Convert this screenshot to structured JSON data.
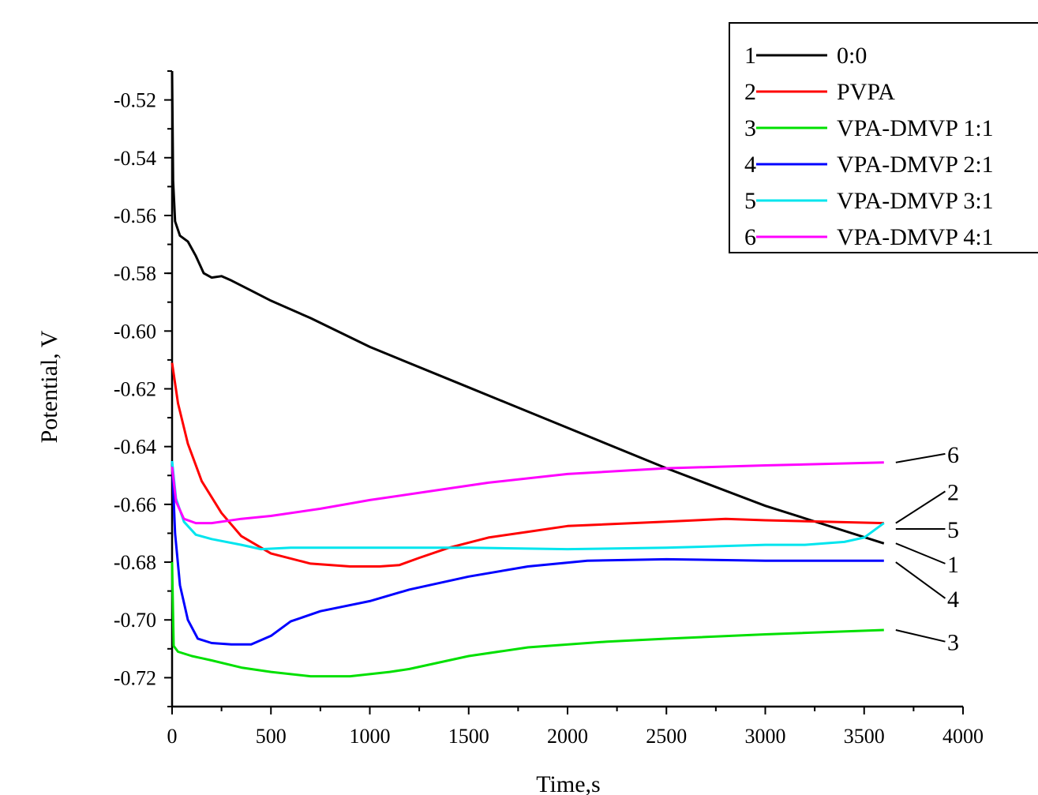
{
  "chart_data": {
    "type": "line",
    "title": "",
    "xlabel": "Time,s",
    "ylabel": "Potential, V",
    "xlim": [
      0,
      4000
    ],
    "ylim": [
      -0.73,
      -0.51
    ],
    "xticks": [
      0,
      500,
      1000,
      1500,
      2000,
      2500,
      3000,
      3500,
      4000
    ],
    "xtick_labels": [
      "0",
      "500",
      "1000",
      "1500",
      "2000",
      "2500",
      "3000",
      "3500",
      "4000"
    ],
    "yticks": [
      -0.72,
      -0.7,
      -0.68,
      -0.66,
      -0.64,
      -0.62,
      -0.6,
      -0.58,
      -0.56,
      -0.54,
      -0.52
    ],
    "ytick_labels": [
      "-0.72",
      "-0.70",
      "-0.68",
      "-0.66",
      "-0.64",
      "-0.62",
      "-0.60",
      "-0.58",
      "-0.56",
      "-0.54",
      "-0.52"
    ],
    "grid": false,
    "legend_position": "top-right",
    "series": [
      {
        "id": "1",
        "name": "0:0",
        "color": "#000000",
        "points": [
          [
            0,
            -0.51
          ],
          [
            5,
            -0.548
          ],
          [
            15,
            -0.562
          ],
          [
            40,
            -0.567
          ],
          [
            80,
            -0.569
          ],
          [
            120,
            -0.574
          ],
          [
            160,
            -0.58
          ],
          [
            200,
            -0.5815
          ],
          [
            250,
            -0.581
          ],
          [
            300,
            -0.5825
          ],
          [
            400,
            -0.586
          ],
          [
            500,
            -0.5895
          ],
          [
            700,
            -0.5955
          ],
          [
            1000,
            -0.6055
          ],
          [
            1500,
            -0.6195
          ],
          [
            2000,
            -0.6335
          ],
          [
            2500,
            -0.6475
          ],
          [
            3000,
            -0.6605
          ],
          [
            3300,
            -0.667
          ],
          [
            3600,
            -0.6735
          ]
        ]
      },
      {
        "id": "2",
        "name": "PVPA",
        "color": "#ff0000",
        "points": [
          [
            0,
            -0.611
          ],
          [
            30,
            -0.625
          ],
          [
            80,
            -0.639
          ],
          [
            150,
            -0.652
          ],
          [
            250,
            -0.663
          ],
          [
            350,
            -0.671
          ],
          [
            500,
            -0.677
          ],
          [
            700,
            -0.6805
          ],
          [
            900,
            -0.6815
          ],
          [
            1050,
            -0.6815
          ],
          [
            1150,
            -0.681
          ],
          [
            1250,
            -0.6785
          ],
          [
            1400,
            -0.675
          ],
          [
            1600,
            -0.6715
          ],
          [
            1800,
            -0.6695
          ],
          [
            2000,
            -0.6675
          ],
          [
            2500,
            -0.666
          ],
          [
            2800,
            -0.665
          ],
          [
            3000,
            -0.6655
          ],
          [
            3600,
            -0.6665
          ]
        ]
      },
      {
        "id": "3",
        "name": "VPA-DMVP 1:1",
        "color": "#00e000",
        "points": [
          [
            0,
            -0.68
          ],
          [
            8,
            -0.709
          ],
          [
            30,
            -0.711
          ],
          [
            100,
            -0.7125
          ],
          [
            200,
            -0.714
          ],
          [
            350,
            -0.7165
          ],
          [
            500,
            -0.718
          ],
          [
            700,
            -0.7195
          ],
          [
            900,
            -0.7195
          ],
          [
            1100,
            -0.718
          ],
          [
            1200,
            -0.717
          ],
          [
            1500,
            -0.7125
          ],
          [
            1800,
            -0.7095
          ],
          [
            2200,
            -0.7075
          ],
          [
            2500,
            -0.7065
          ],
          [
            3000,
            -0.705
          ],
          [
            3600,
            -0.7035
          ]
        ]
      },
      {
        "id": "4",
        "name": "VPA-DMVP 2:1",
        "color": "#0000ff",
        "points": [
          [
            0,
            -0.645
          ],
          [
            15,
            -0.67
          ],
          [
            40,
            -0.688
          ],
          [
            80,
            -0.7
          ],
          [
            130,
            -0.7065
          ],
          [
            200,
            -0.708
          ],
          [
            300,
            -0.7085
          ],
          [
            400,
            -0.7085
          ],
          [
            500,
            -0.7055
          ],
          [
            600,
            -0.7005
          ],
          [
            750,
            -0.697
          ],
          [
            1000,
            -0.6935
          ],
          [
            1200,
            -0.6895
          ],
          [
            1500,
            -0.685
          ],
          [
            1800,
            -0.6815
          ],
          [
            2100,
            -0.6795
          ],
          [
            2500,
            -0.679
          ],
          [
            3000,
            -0.6795
          ],
          [
            3600,
            -0.6795
          ]
        ]
      },
      {
        "id": "5",
        "name": "VPA-DMVP 3:1",
        "color": "#00e5ee",
        "points": [
          [
            0,
            -0.645
          ],
          [
            20,
            -0.658
          ],
          [
            60,
            -0.666
          ],
          [
            120,
            -0.6705
          ],
          [
            200,
            -0.672
          ],
          [
            350,
            -0.674
          ],
          [
            450,
            -0.6755
          ],
          [
            600,
            -0.675
          ],
          [
            1000,
            -0.675
          ],
          [
            1500,
            -0.675
          ],
          [
            2000,
            -0.6755
          ],
          [
            2500,
            -0.675
          ],
          [
            3000,
            -0.674
          ],
          [
            3200,
            -0.674
          ],
          [
            3400,
            -0.673
          ],
          [
            3500,
            -0.6715
          ],
          [
            3600,
            -0.6665
          ]
        ]
      },
      {
        "id": "6",
        "name": "VPA-DMVP 4:1",
        "color": "#ff00ff",
        "points": [
          [
            0,
            -0.647
          ],
          [
            20,
            -0.659
          ],
          [
            60,
            -0.665
          ],
          [
            120,
            -0.6665
          ],
          [
            200,
            -0.6665
          ],
          [
            350,
            -0.665
          ],
          [
            500,
            -0.664
          ],
          [
            750,
            -0.6615
          ],
          [
            1000,
            -0.6585
          ],
          [
            1300,
            -0.6555
          ],
          [
            1600,
            -0.6525
          ],
          [
            2000,
            -0.6495
          ],
          [
            2500,
            -0.6475
          ],
          [
            3000,
            -0.6465
          ],
          [
            3600,
            -0.6455
          ]
        ]
      }
    ],
    "curve_labels": [
      {
        "text": "6",
        "y": -0.6455,
        "ly": -0.6425
      },
      {
        "text": "2",
        "y": -0.6665,
        "ly": -0.6555
      },
      {
        "text": "5",
        "y": -0.6685,
        "ly": -0.6685
      },
      {
        "text": "1",
        "y": -0.6735,
        "ly": -0.6805
      },
      {
        "text": "4",
        "y": -0.68,
        "ly": -0.6925
      },
      {
        "text": "3",
        "y": -0.7035,
        "ly": -0.7075
      }
    ]
  }
}
